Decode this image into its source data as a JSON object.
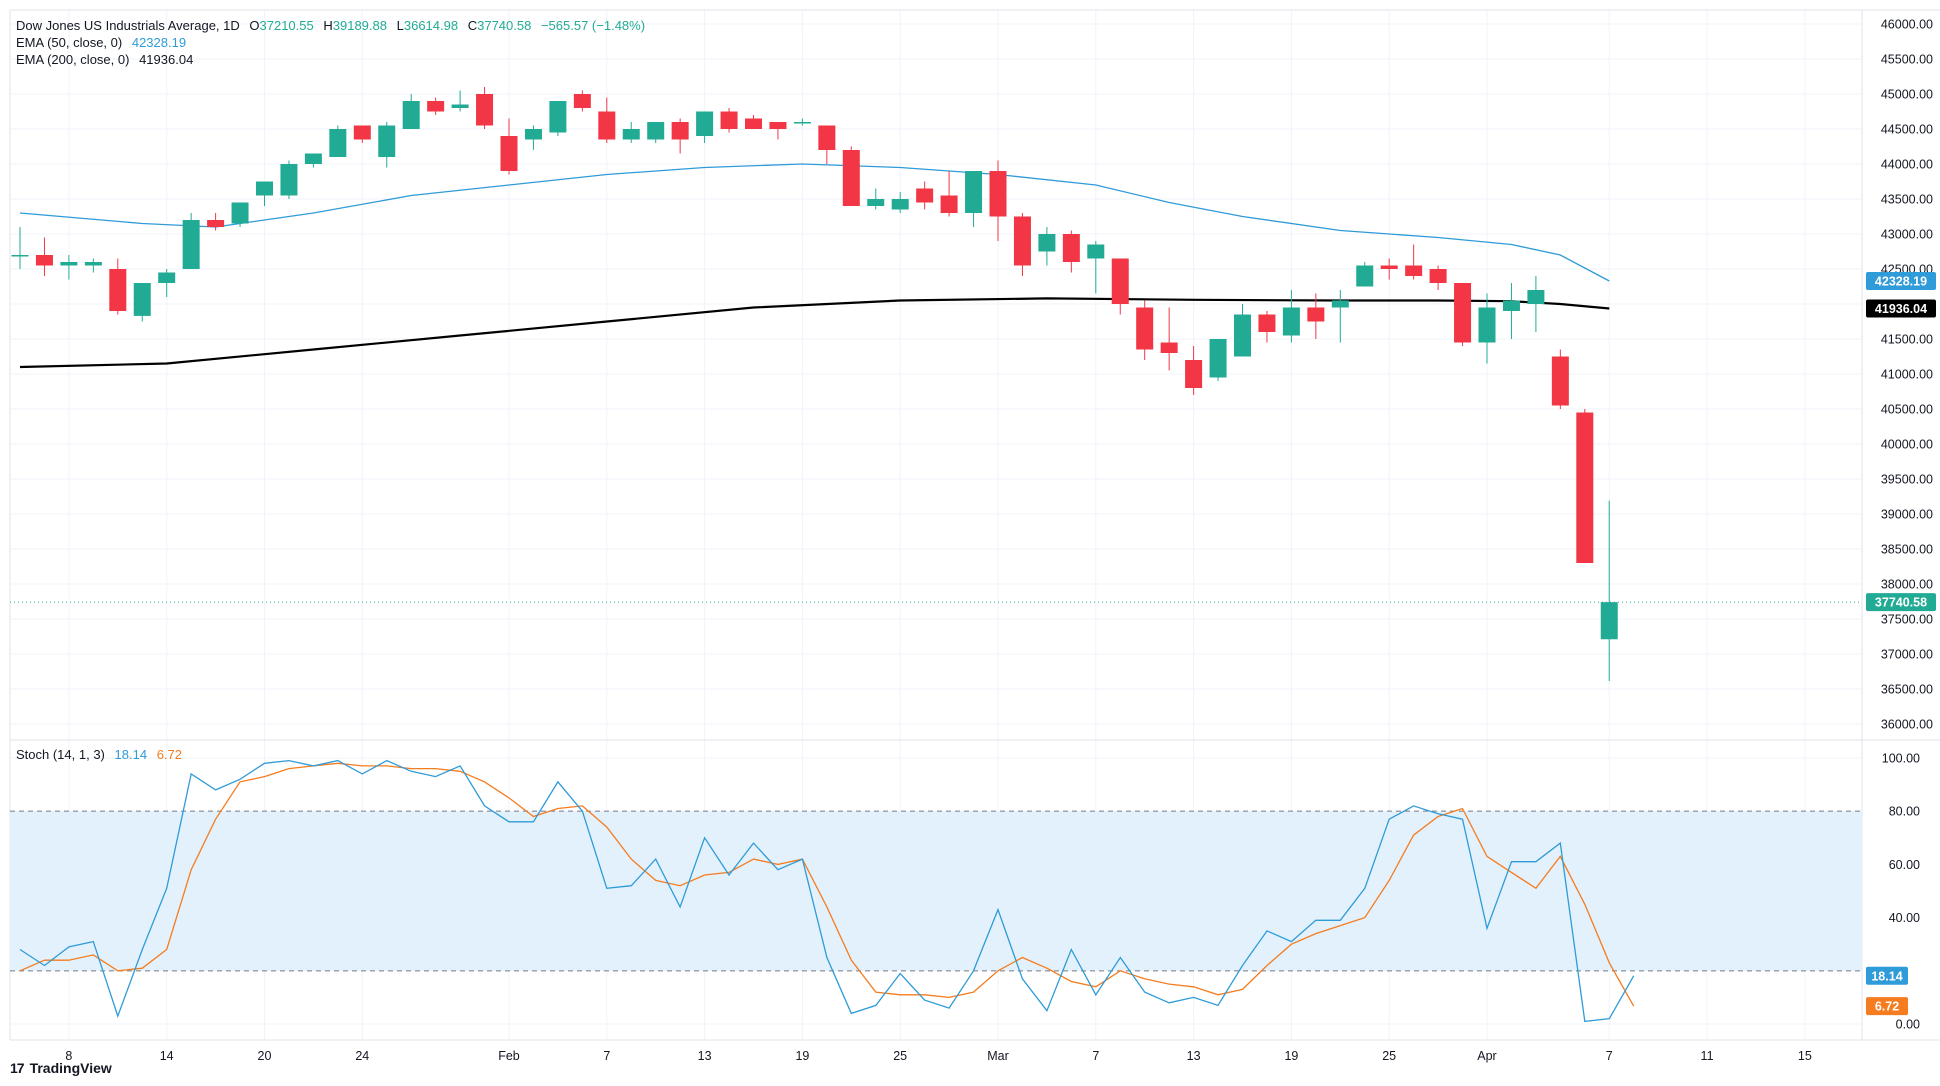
{
  "header": {
    "symbol_name": "Dow Jones US Industrials Average, 1D",
    "ohlc": [
      {
        "k": "O",
        "v": "37210.55"
      },
      {
        "k": "H",
        "v": "39189.88"
      },
      {
        "k": "L",
        "v": "36614.98"
      },
      {
        "k": "C",
        "v": "37740.58"
      }
    ],
    "change": "−565.57 (−1.48%)",
    "ema50_label": "EMA (50, close, 0)",
    "ema50_value": "42328.19",
    "ema200_label": "EMA (200, close, 0)",
    "ema200_value": "41936.04",
    "stoch_label": "Stoch (14, 1, 3)",
    "stoch_k_value": "18.14",
    "stoch_d_value": "6.72"
  },
  "branding": {
    "logo_text": "TradingView",
    "logo_mark": "17"
  },
  "colors": {
    "up": "#22ab94",
    "down": "#f23645",
    "ema50": "#2f9bd8",
    "ema200": "#000000",
    "stoch_k": "#2f9bd8",
    "stoch_d": "#f57c1f",
    "band_fill": "#e3f1fc",
    "grid": "#f0f3fa",
    "axis_text": "#131722"
  },
  "chart_data": [
    {
      "type": "candlestick",
      "title": "Dow Jones US Industrials Average, 1D",
      "ylim": [
        35800,
        46200
      ],
      "y_ticks": [
        36000,
        36500,
        37000,
        37500,
        38000,
        38500,
        39000,
        39500,
        40000,
        40500,
        41000,
        41500,
        42000,
        42500,
        43000,
        43500,
        44000,
        44500,
        45000,
        45500,
        46000
      ],
      "y_tick_labels": [
        "36000.00",
        "36500.00",
        "37000.00",
        "37500.00",
        "38000.00",
        "38500.00",
        "39000.00",
        "39500.00",
        "40000.00",
        "40500.00",
        "41000.00",
        "41500.00",
        "42000.00",
        "42500.00",
        "43000.00",
        "43500.00",
        "44000.00",
        "44500.00",
        "45000.00",
        "45500.00",
        "46000.00"
      ],
      "x_tick_labels": [
        {
          "label": "8",
          "index": 2
        },
        {
          "label": "14",
          "index": 6
        },
        {
          "label": "20",
          "index": 10
        },
        {
          "label": "24",
          "index": 14
        },
        {
          "label": "Feb",
          "index": 20
        },
        {
          "label": "7",
          "index": 24
        },
        {
          "label": "13",
          "index": 28
        },
        {
          "label": "19",
          "index": 32
        },
        {
          "label": "25",
          "index": 36
        },
        {
          "label": "Mar",
          "index": 40
        },
        {
          "label": "7",
          "index": 44
        },
        {
          "label": "13",
          "index": 48
        },
        {
          "label": "19",
          "index": 52
        },
        {
          "label": "25",
          "index": 56
        },
        {
          "label": "Apr",
          "index": 60
        },
        {
          "label": "7",
          "index": 65
        },
        {
          "label": "11",
          "index": 69
        },
        {
          "label": "15",
          "index": 73
        }
      ],
      "candles": [
        {
          "o": 42700,
          "h": 43100,
          "l": 42500,
          "c": 42700
        },
        {
          "o": 42700,
          "h": 42950,
          "l": 42400,
          "c": 42550
        },
        {
          "o": 42550,
          "h": 42700,
          "l": 42350,
          "c": 42600
        },
        {
          "o": 42550,
          "h": 42650,
          "l": 42450,
          "c": 42600
        },
        {
          "o": 42500,
          "h": 42650,
          "l": 41850,
          "c": 41900
        },
        {
          "o": 41830,
          "h": 42300,
          "l": 41750,
          "c": 42300
        },
        {
          "o": 42300,
          "h": 42500,
          "l": 42100,
          "c": 42450
        },
        {
          "o": 42500,
          "h": 43300,
          "l": 42500,
          "c": 43200
        },
        {
          "o": 43200,
          "h": 43300,
          "l": 43050,
          "c": 43100
        },
        {
          "o": 43150,
          "h": 43450,
          "l": 43100,
          "c": 43450
        },
        {
          "o": 43550,
          "h": 43750,
          "l": 43400,
          "c": 43750
        },
        {
          "o": 43550,
          "h": 44050,
          "l": 43500,
          "c": 44000
        },
        {
          "o": 44000,
          "h": 44150,
          "l": 43950,
          "c": 44150
        },
        {
          "o": 44100,
          "h": 44550,
          "l": 44100,
          "c": 44500
        },
        {
          "o": 44550,
          "h": 44550,
          "l": 44300,
          "c": 44350
        },
        {
          "o": 44100,
          "h": 44600,
          "l": 43950,
          "c": 44550
        },
        {
          "o": 44500,
          "h": 45000,
          "l": 44500,
          "c": 44900
        },
        {
          "o": 44900,
          "h": 44950,
          "l": 44700,
          "c": 44750
        },
        {
          "o": 44800,
          "h": 45050,
          "l": 44750,
          "c": 44850
        },
        {
          "o": 45000,
          "h": 45100,
          "l": 44500,
          "c": 44550
        },
        {
          "o": 44400,
          "h": 44650,
          "l": 43850,
          "c": 43900
        },
        {
          "o": 44350,
          "h": 44550,
          "l": 44200,
          "c": 44500
        },
        {
          "o": 44450,
          "h": 44900,
          "l": 44400,
          "c": 44900
        },
        {
          "o": 45000,
          "h": 45050,
          "l": 44750,
          "c": 44800
        },
        {
          "o": 44750,
          "h": 44950,
          "l": 44300,
          "c": 44350
        },
        {
          "o": 44350,
          "h": 44600,
          "l": 44300,
          "c": 44500
        },
        {
          "o": 44350,
          "h": 44600,
          "l": 44300,
          "c": 44600
        },
        {
          "o": 44600,
          "h": 44650,
          "l": 44150,
          "c": 44350
        },
        {
          "o": 44400,
          "h": 44750,
          "l": 44300,
          "c": 44750
        },
        {
          "o": 44750,
          "h": 44800,
          "l": 44450,
          "c": 44500
        },
        {
          "o": 44650,
          "h": 44700,
          "l": 44500,
          "c": 44500
        },
        {
          "o": 44600,
          "h": 44600,
          "l": 44350,
          "c": 44500
        },
        {
          "o": 44600,
          "h": 44650,
          "l": 44550,
          "c": 44600
        },
        {
          "o": 44550,
          "h": 44550,
          "l": 44000,
          "c": 44200
        },
        {
          "o": 44200,
          "h": 44250,
          "l": 43400,
          "c": 43400
        },
        {
          "o": 43400,
          "h": 43650,
          "l": 43350,
          "c": 43500
        },
        {
          "o": 43350,
          "h": 43600,
          "l": 43300,
          "c": 43500
        },
        {
          "o": 43650,
          "h": 43750,
          "l": 43350,
          "c": 43450
        },
        {
          "o": 43550,
          "h": 43900,
          "l": 43250,
          "c": 43300
        },
        {
          "o": 43300,
          "h": 43900,
          "l": 43100,
          "c": 43900
        },
        {
          "o": 43900,
          "h": 44050,
          "l": 42900,
          "c": 43250
        },
        {
          "o": 43250,
          "h": 43300,
          "l": 42400,
          "c": 42550
        },
        {
          "o": 42750,
          "h": 43100,
          "l": 42550,
          "c": 43000
        },
        {
          "o": 43000,
          "h": 43050,
          "l": 42450,
          "c": 42600
        },
        {
          "o": 42650,
          "h": 42900,
          "l": 42150,
          "c": 42850
        },
        {
          "o": 42650,
          "h": 42650,
          "l": 41850,
          "c": 42000
        },
        {
          "o": 41950,
          "h": 42050,
          "l": 41200,
          "c": 41350
        },
        {
          "o": 41450,
          "h": 41950,
          "l": 41050,
          "c": 41300
        },
        {
          "o": 41200,
          "h": 41400,
          "l": 40700,
          "c": 40800
        },
        {
          "o": 40950,
          "h": 41500,
          "l": 40900,
          "c": 41500
        },
        {
          "o": 41250,
          "h": 42000,
          "l": 41250,
          "c": 41850
        },
        {
          "o": 41850,
          "h": 41900,
          "l": 41450,
          "c": 41600
        },
        {
          "o": 41550,
          "h": 42200,
          "l": 41450,
          "c": 41950
        },
        {
          "o": 41950,
          "h": 42150,
          "l": 41500,
          "c": 41750
        },
        {
          "o": 41950,
          "h": 42200,
          "l": 41450,
          "c": 42050
        },
        {
          "o": 42250,
          "h": 42600,
          "l": 42250,
          "c": 42550
        },
        {
          "o": 42550,
          "h": 42650,
          "l": 42350,
          "c": 42500
        },
        {
          "o": 42550,
          "h": 42850,
          "l": 42350,
          "c": 42400
        },
        {
          "o": 42500,
          "h": 42550,
          "l": 42200,
          "c": 42300
        },
        {
          "o": 42300,
          "h": 42300,
          "l": 41400,
          "c": 41450
        },
        {
          "o": 41450,
          "h": 42150,
          "l": 41150,
          "c": 41950
        },
        {
          "o": 41900,
          "h": 42300,
          "l": 41500,
          "c": 42050
        },
        {
          "o": 42000,
          "h": 42400,
          "l": 41600,
          "c": 42200
        },
        {
          "o": 41250,
          "h": 41350,
          "l": 40500,
          "c": 40550
        },
        {
          "o": 40450,
          "h": 40500,
          "l": 38300,
          "c": 38300
        },
        {
          "o": 37210.55,
          "h": 39189.88,
          "l": 36614.98,
          "c": 37740.58
        }
      ],
      "ema50": [
        [
          0,
          43300
        ],
        [
          5,
          43150
        ],
        [
          8,
          43100
        ],
        [
          12,
          43300
        ],
        [
          16,
          43550
        ],
        [
          20,
          43700
        ],
        [
          24,
          43850
        ],
        [
          28,
          43950
        ],
        [
          32,
          44000
        ],
        [
          36,
          43950
        ],
        [
          40,
          43850
        ],
        [
          44,
          43700
        ],
        [
          47,
          43450
        ],
        [
          50,
          43250
        ],
        [
          54,
          43050
        ],
        [
          58,
          42950
        ],
        [
          61,
          42850
        ],
        [
          63,
          42700
        ],
        [
          65,
          42328.19
        ]
      ],
      "ema200": [
        [
          0,
          41100
        ],
        [
          6,
          41150
        ],
        [
          12,
          41350
        ],
        [
          18,
          41550
        ],
        [
          24,
          41750
        ],
        [
          30,
          41950
        ],
        [
          36,
          42050
        ],
        [
          42,
          42080
        ],
        [
          48,
          42060
        ],
        [
          54,
          42050
        ],
        [
          58,
          42050
        ],
        [
          61,
          42040
        ],
        [
          63,
          42000
        ],
        [
          65,
          41936.04
        ]
      ],
      "last_price": 37740.58,
      "last_price_label": "37740.58",
      "ema50_label": "42328.19",
      "ema200_label": "41936.04"
    },
    {
      "type": "line",
      "title": "Stoch (14, 1, 3)",
      "ylim": [
        -6,
        106
      ],
      "y_ticks": [
        0,
        20,
        40,
        60,
        80,
        100
      ],
      "y_tick_labels": [
        "0.00",
        "",
        "40.00",
        "60.00",
        "80.00",
        "100.00"
      ],
      "bands": [
        20,
        80
      ],
      "series": [
        {
          "name": "%K",
          "values": [
            28,
            22,
            29,
            31,
            3,
            28,
            51,
            94,
            88,
            92,
            98,
            99,
            97,
            99,
            94,
            99,
            95,
            93,
            97,
            82,
            76,
            76,
            91,
            80,
            51,
            52,
            62,
            44,
            70,
            56,
            68,
            58,
            62,
            25,
            4,
            7,
            19,
            9,
            6,
            20,
            43,
            17,
            5,
            28,
            11,
            25,
            12,
            8,
            10,
            7,
            22,
            35,
            31,
            39,
            39,
            51,
            77,
            82,
            79,
            77,
            36,
            61,
            61,
            68,
            1,
            2,
            18.14
          ]
        },
        {
          "name": "%D",
          "values": [
            20,
            24,
            24,
            26,
            20,
            21,
            28,
            58,
            77,
            91,
            93,
            96,
            97,
            98,
            97,
            97,
            96,
            96,
            95,
            91,
            85,
            78,
            81,
            82,
            74,
            62,
            54,
            52,
            56,
            57,
            62,
            60,
            62,
            44,
            24,
            12,
            11,
            11,
            10,
            12,
            20,
            25,
            21,
            16,
            14,
            20,
            17,
            15,
            14,
            11,
            13,
            22,
            30,
            34,
            37,
            40,
            54,
            71,
            78,
            81,
            63,
            57,
            51,
            63,
            45,
            23,
            6.72
          ]
        }
      ]
    }
  ]
}
